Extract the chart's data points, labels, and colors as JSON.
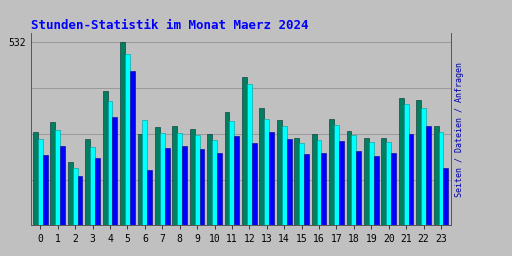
{
  "title": "Stunden-Statistik im Monat Maerz 2024",
  "title_color": "#0000ff",
  "title_fontsize": 9,
  "xlabel_labels": [
    "0",
    "1",
    "2",
    "3",
    "4",
    "5",
    "6",
    "7",
    "8",
    "9",
    "10",
    "11",
    "12",
    "13",
    "14",
    "15",
    "16",
    "17",
    "18",
    "19",
    "20",
    "21",
    "22",
    "23"
  ],
  "ytick_label": "532",
  "ytick_value": 532,
  "background_color": "#c0c0c0",
  "plot_bg_color": "#c0c0c0",
  "bar_colors": [
    "#008060",
    "#00ffff",
    "#0000ff"
  ],
  "bar_width": 0.28,
  "grid_color": "#999999",
  "ylabel_right": "Seiten / Dateien / Anfragen",
  "seiten": [
    270,
    300,
    185,
    250,
    390,
    532,
    265,
    285,
    290,
    280,
    265,
    330,
    430,
    340,
    305,
    255,
    265,
    310,
    275,
    255,
    255,
    370,
    365,
    290
  ],
  "dateien": [
    250,
    278,
    168,
    228,
    362,
    498,
    305,
    268,
    268,
    263,
    248,
    302,
    412,
    308,
    288,
    238,
    248,
    292,
    262,
    242,
    242,
    352,
    342,
    272
  ],
  "anfragen": [
    205,
    230,
    142,
    197,
    316,
    450,
    162,
    226,
    231,
    221,
    211,
    261,
    240,
    272,
    251,
    207,
    211,
    246,
    216,
    201,
    211,
    266,
    290,
    166
  ]
}
